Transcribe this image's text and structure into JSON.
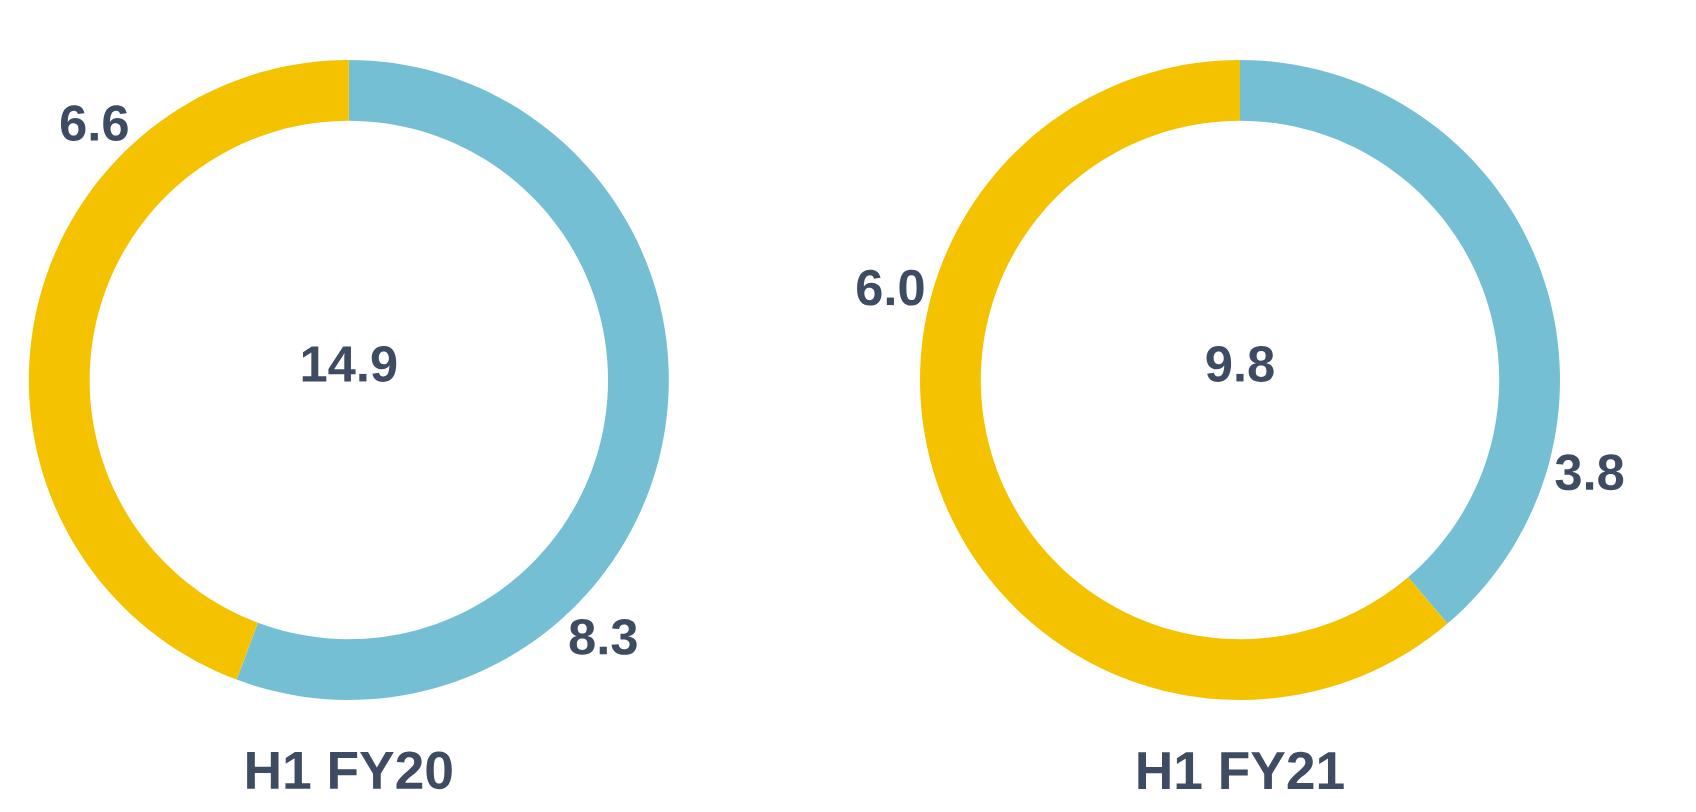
{
  "chart_data": [
    {
      "type": "donut",
      "title": "H1 FY20",
      "categories": [
        null,
        null
      ],
      "values": [
        8.3,
        6.6
      ],
      "colors": [
        "#74bfd3",
        "#f5c200"
      ],
      "data_labels": true,
      "annotations": [
        "14.9"
      ]
    },
    {
      "type": "donut",
      "title": "H1 FY21",
      "categories": [
        null,
        null
      ],
      "values": [
        3.8,
        6.0
      ],
      "value_labels": [
        "3.8",
        "6.0"
      ],
      "colors": [
        "#74bfd3",
        "#f5c200"
      ],
      "annotations": [
        "9.8"
      ]
    }
  ]
}
